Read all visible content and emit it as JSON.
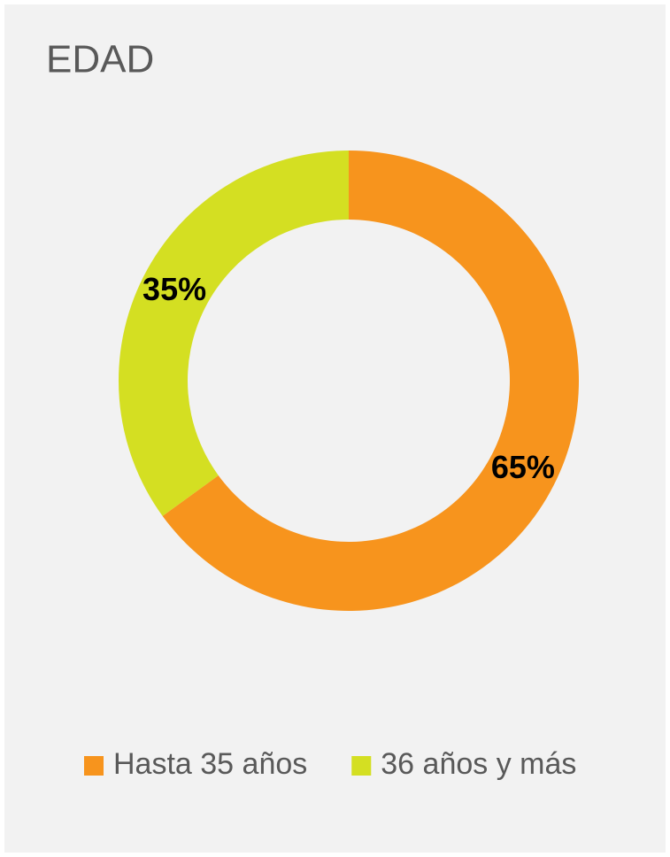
{
  "chart_data": {
    "type": "donut",
    "title": "EDAD",
    "categories": [
      "Hasta 35 años",
      "36 años y más"
    ],
    "values": [
      65,
      35
    ],
    "value_labels": [
      "65%",
      "35%"
    ],
    "colors": [
      "#f7941d",
      "#d4df22"
    ],
    "legend": "bottom"
  }
}
